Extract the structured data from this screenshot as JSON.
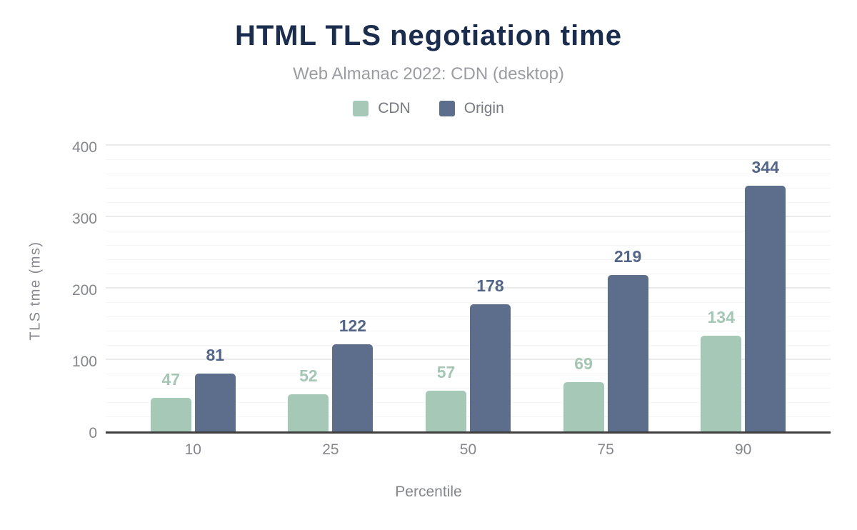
{
  "chart_data": {
    "type": "bar",
    "title": "HTML TLS negotiation time",
    "subtitle": "Web Almanac 2022: CDN (desktop)",
    "xlabel": "Percentile",
    "ylabel": "TLS tme (ms)",
    "categories": [
      "10",
      "25",
      "50",
      "75",
      "90"
    ],
    "series": [
      {
        "name": "CDN",
        "color": "#a6c9b7",
        "label_color": "#a3c7b4",
        "values": [
          47,
          52,
          57,
          69,
          134
        ]
      },
      {
        "name": "Origin",
        "color": "#5d6e8d",
        "label_color": "#53668a",
        "values": [
          81,
          122,
          178,
          219,
          344
        ]
      }
    ],
    "ylim": [
      0,
      400
    ],
    "yticks": [
      0,
      100,
      200,
      300,
      400
    ],
    "grid": {
      "minor_step": 20,
      "major_step": 100,
      "minor_color": "#f6f6f6",
      "major_color": "#ebebeb"
    },
    "legend_position": "top",
    "grid_on": true
  },
  "styles": {
    "title_color": "#1b2d4f",
    "subtitle_color": "#9b9da3",
    "legend_text_color": "#76797f",
    "tick_color": "#85878c",
    "axis_title_color": "#85878c",
    "axis_line_color": "#3f3f3f",
    "background": "#ffffff"
  }
}
